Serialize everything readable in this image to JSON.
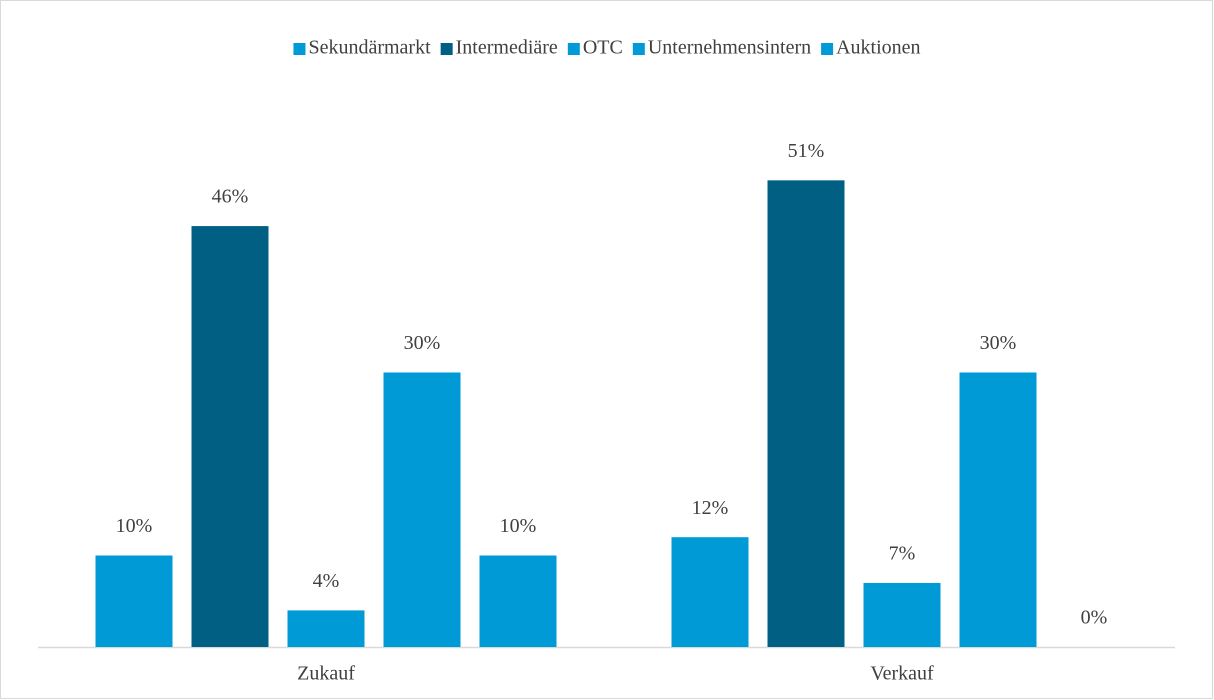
{
  "chart_data": {
    "type": "bar",
    "categories": [
      "Zukauf",
      "Verkauf"
    ],
    "series": [
      {
        "name": "Sekundärmarkt",
        "color": "#009bd6",
        "values": [
          10,
          12
        ],
        "value_labels": [
          "10%",
          "12%"
        ]
      },
      {
        "name": "Intermediäre",
        "color": "#005f83",
        "values": [
          46,
          51
        ],
        "value_labels": [
          "46%",
          "51%"
        ]
      },
      {
        "name": "OTC",
        "color": "#009bd6",
        "values": [
          4,
          7
        ],
        "value_labels": [
          "4%",
          "7%"
        ]
      },
      {
        "name": "Unternehmensintern",
        "color": "#009bd6",
        "values": [
          30,
          30
        ],
        "value_labels": [
          "30%",
          "30%"
        ]
      },
      {
        "name": "Auktionen",
        "color": "#009bd6",
        "values": [
          10,
          0
        ],
        "value_labels": [
          "10%",
          "0%"
        ]
      }
    ],
    "legend": "top"
  }
}
